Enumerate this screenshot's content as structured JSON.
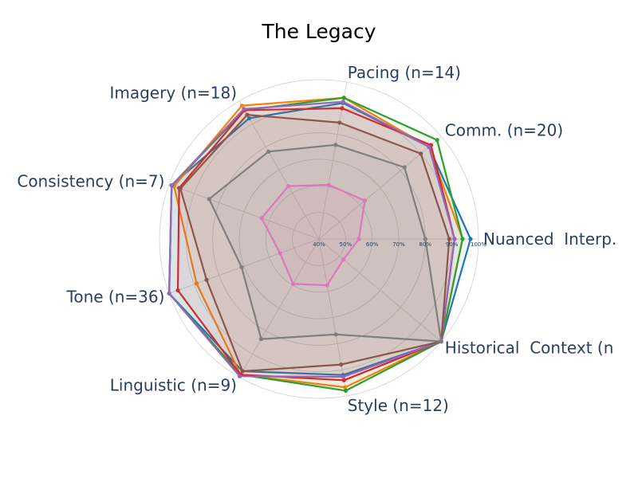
{
  "chart_data": {
    "type": "radar",
    "title": "The Legacy",
    "categories": [
      "Nuanced  Interp.",
      "Comm. (n=20)",
      "Pacing (n=14)",
      "Imagery (n=18)",
      "Consistency (n=7)",
      "Tone (n=36)",
      "Linguistic (n=9)",
      "Style (n=12)",
      "Historical  Context (n"
    ],
    "rlim": [
      40,
      100
    ],
    "rticks": [
      {
        "value": 40,
        "label": "40%"
      },
      {
        "value": 50,
        "label": "50%"
      },
      {
        "value": 60,
        "label": "60%"
      },
      {
        "value": 70,
        "label": "70%"
      },
      {
        "value": 80,
        "label": "80%"
      },
      {
        "value": 90,
        "label": "90%"
      },
      {
        "value": 100,
        "label": "100%"
      }
    ],
    "grid": true,
    "series": [
      {
        "color": "#1f77b4",
        "values": [
          97,
          94,
          92,
          92.5,
          99,
          100,
          97.5,
          92,
          100
        ]
      },
      {
        "color": "#ff7f0e",
        "values": [
          94,
          94,
          94,
          98,
          98,
          89,
          99,
          96.7,
          100
        ]
      },
      {
        "color": "#2ca02c",
        "values": [
          94,
          98,
          94,
          96,
          99,
          100,
          99,
          98,
          100
        ]
      },
      {
        "color": "#d62728",
        "values": [
          91,
          95,
          90,
          96,
          96,
          96.5,
          99,
          94,
          100
        ]
      },
      {
        "color": "#9467bd",
        "values": [
          91,
          94,
          92.5,
          96.5,
          99,
          100,
          99.7,
          92.7,
          100
        ]
      },
      {
        "color": "#8c564b",
        "values": [
          89,
          90,
          84.5,
          94,
          95.5,
          85,
          97.5,
          88,
          100
        ]
      },
      {
        "color": "#e377c2",
        "values": [
          55,
          62.5,
          60.7,
          63,
          63,
          55.6,
          59.5,
          57.7,
          52
        ]
      },
      {
        "color": "#7f7f7f",
        "values": [
          80,
          82,
          76,
          78,
          84,
          71,
          83.5,
          76.5,
          100
        ]
      }
    ]
  }
}
